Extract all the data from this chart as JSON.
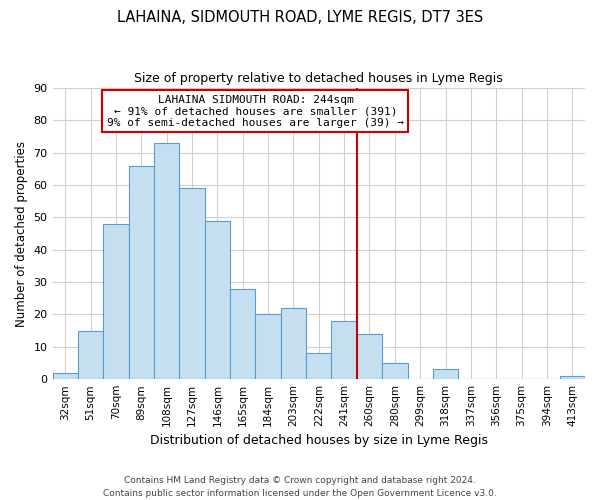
{
  "title": "LAHAINA, SIDMOUTH ROAD, LYME REGIS, DT7 3ES",
  "subtitle": "Size of property relative to detached houses in Lyme Regis",
  "xlabel": "Distribution of detached houses by size in Lyme Regis",
  "ylabel": "Number of detached properties",
  "bin_labels": [
    "32sqm",
    "51sqm",
    "70sqm",
    "89sqm",
    "108sqm",
    "127sqm",
    "146sqm",
    "165sqm",
    "184sqm",
    "203sqm",
    "222sqm",
    "241sqm",
    "260sqm",
    "280sqm",
    "299sqm",
    "318sqm",
    "337sqm",
    "356sqm",
    "375sqm",
    "394sqm",
    "413sqm"
  ],
  "bar_heights": [
    2,
    15,
    48,
    66,
    73,
    59,
    49,
    28,
    20,
    22,
    8,
    18,
    14,
    5,
    0,
    3,
    0,
    0,
    0,
    0,
    1
  ],
  "bar_color": "#c5dff0",
  "bar_edge_color": "#5b9bd5",
  "vline_x_index": 11,
  "vline_color": "#cc0000",
  "annotation_title": "LAHAINA SIDMOUTH ROAD: 244sqm",
  "annotation_line1": "← 91% of detached houses are smaller (391)",
  "annotation_line2": "9% of semi-detached houses are larger (39) →",
  "annotation_box_color": "#ffffff",
  "annotation_box_edge": "#cc0000",
  "ylim": [
    0,
    90
  ],
  "yticks": [
    0,
    10,
    20,
    30,
    40,
    50,
    60,
    70,
    80,
    90
  ],
  "footer_line1": "Contains HM Land Registry data © Crown copyright and database right 2024.",
  "footer_line2": "Contains public sector information licensed under the Open Government Licence v3.0.",
  "background_color": "#ffffff",
  "grid_color": "#d0d0d0"
}
